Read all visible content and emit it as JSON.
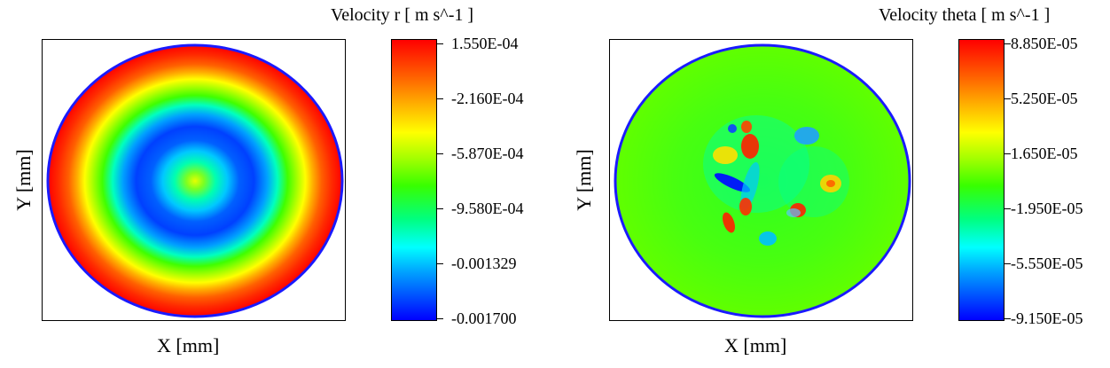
{
  "charts": [
    {
      "id": "left",
      "colorbar_title": "Velocity r [ m s^-1 ]",
      "xlabel": "X [mm]",
      "ylabel": "Y [mm]",
      "ticks": [
        "1.550E-04",
        "-2.160E-04",
        "-5.870E-04",
        "-9.580E-04",
        "-0.001329",
        "-0.001700"
      ]
    },
    {
      "id": "right",
      "colorbar_title": "Velocity theta [ m s^-1 ]",
      "xlabel": "X [mm]",
      "ylabel": "Y [mm]",
      "ticks": [
        "8.850E-05",
        "5.250E-05",
        "1.650E-05",
        "-1.950E-05",
        "-5.550E-05",
        "-9.150E-05"
      ]
    }
  ],
  "chart_data": [
    {
      "type": "heatmap",
      "title": "",
      "xlabel": "X [mm]",
      "ylabel": "Y [mm]",
      "colorbar_label": "Velocity r [ m s^-1 ]",
      "colorbar_range": [
        -0.0017,
        0.000155
      ],
      "colorbar_ticks": [
        0.000155,
        -0.000216,
        -0.000587,
        -0.000958,
        -0.001329,
        -0.0017
      ],
      "colormap": "rainbow (blue-cyan-green-yellow-red)",
      "pattern": "concentric rings: center ~-5.87E-04 (yellow-green), ring at ~0.35 radius ~-0.0017 (blue), rising through green and yellow to ~1.55E-04 (red) at outer edge"
    },
    {
      "type": "heatmap",
      "title": "",
      "xlabel": "X [mm]",
      "ylabel": "Y [mm]",
      "colorbar_label": "Velocity theta [ m s^-1 ]",
      "colorbar_range": [
        -9.15e-05,
        8.85e-05
      ],
      "colorbar_ticks": [
        8.85e-05,
        5.25e-05,
        1.65e-05,
        -1.95e-05,
        -5.55e-05,
        -9.15e-05
      ],
      "colormap": "rainbow (blue-cyan-green-yellow-red)",
      "pattern": "mostly green (~1.65E-05) with scattered small red/yellow and blue/cyan spots near the center"
    }
  ]
}
